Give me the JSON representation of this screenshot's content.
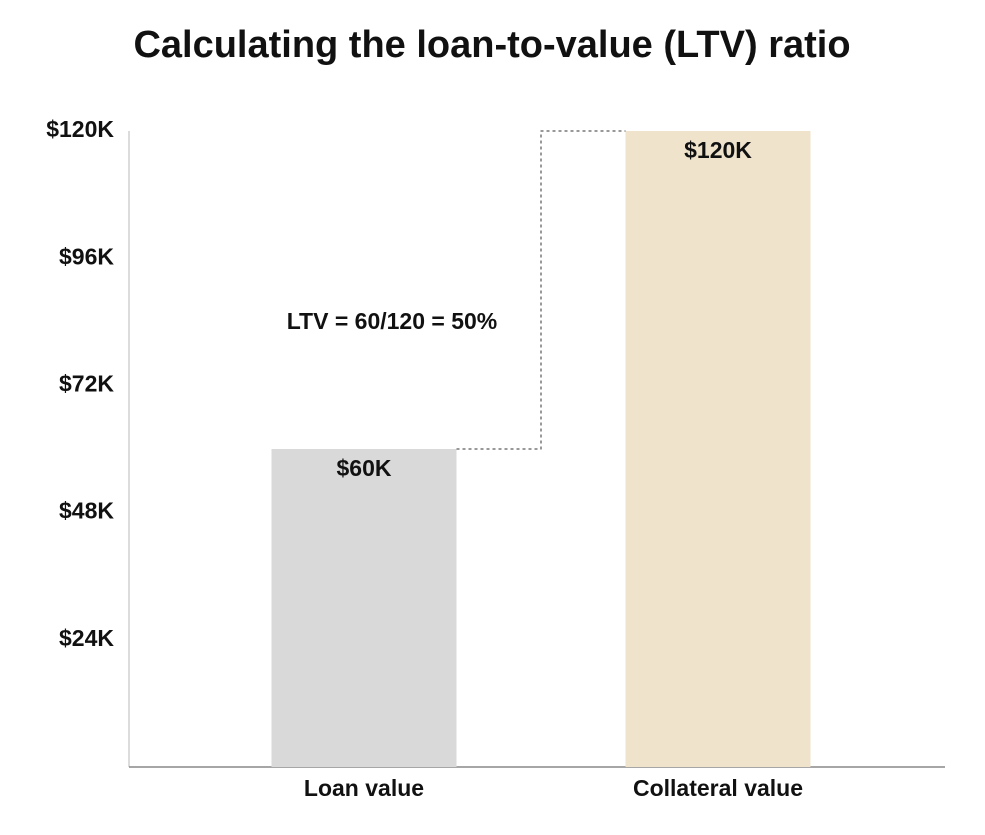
{
  "chart_data": {
    "type": "bar",
    "title": "Calculating the loan-to-value (LTV) ratio",
    "categories": [
      "Loan value",
      "Collateral value"
    ],
    "values": [
      60000,
      120000
    ],
    "value_labels": [
      "$60K",
      "$120K"
    ],
    "colors": [
      "#d9d9d9",
      "#efe3cb"
    ],
    "annotation": "LTV = 60/120 = 50%",
    "ylim": [
      0,
      120000
    ],
    "yticks": [
      {
        "value": 24000,
        "label": "$24K"
      },
      {
        "value": 48000,
        "label": "$48K"
      },
      {
        "value": 72000,
        "label": "$72K"
      },
      {
        "value": 96000,
        "label": "$96K"
      },
      {
        "value": 120000,
        "label": "$120K"
      }
    ],
    "grid": false
  }
}
